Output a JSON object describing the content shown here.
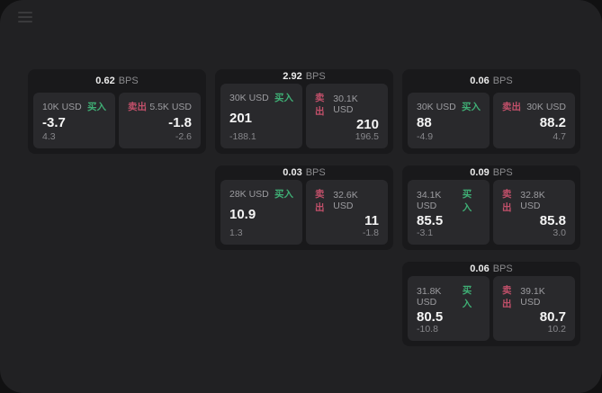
{
  "colors": {
    "buy_green": "#3fae75",
    "sell_red": "#c2506a",
    "window_bg": "#212123",
    "card_bg": "#19191b",
    "panel_bg": "#29292c"
  },
  "labels": {
    "bps_unit": "BPS",
    "buy": "买入",
    "sell": "卖出"
  },
  "cards": [
    {
      "bps": "0.62",
      "buy": {
        "amount": "10K USD",
        "value": "-3.7",
        "sub": "4.3"
      },
      "sell": {
        "amount": "5.5K USD",
        "value": "-1.8",
        "sub": "-2.6"
      }
    },
    {
      "bps": "2.92",
      "buy": {
        "amount": "30K USD",
        "value": "201",
        "sub": "-188.1"
      },
      "sell": {
        "amount": "30.1K USD",
        "value": "210",
        "sub": "196.5"
      }
    },
    {
      "bps": "0.06",
      "buy": {
        "amount": "30K USD",
        "value": "88",
        "sub": "-4.9"
      },
      "sell": {
        "amount": "30K USD",
        "value": "88.2",
        "sub": "4.7"
      }
    },
    {
      "bps": "0.03",
      "buy": {
        "amount": "28K USD",
        "value": "10.9",
        "sub": "1.3"
      },
      "sell": {
        "amount": "32.6K USD",
        "value": "11",
        "sub": "-1.8"
      }
    },
    {
      "bps": "0.09",
      "buy": {
        "amount": "34.1K USD",
        "value": "85.5",
        "sub": "-3.1"
      },
      "sell": {
        "amount": "32.8K USD",
        "value": "85.8",
        "sub": "3.0"
      }
    },
    {
      "bps": "0.06",
      "buy": {
        "amount": "31.8K USD",
        "value": "80.5",
        "sub": "-10.8"
      },
      "sell": {
        "amount": "39.1K USD",
        "value": "80.7",
        "sub": "10.2"
      }
    }
  ],
  "grid_slots": [
    0,
    1,
    2,
    null,
    3,
    4,
    null,
    null,
    5
  ]
}
